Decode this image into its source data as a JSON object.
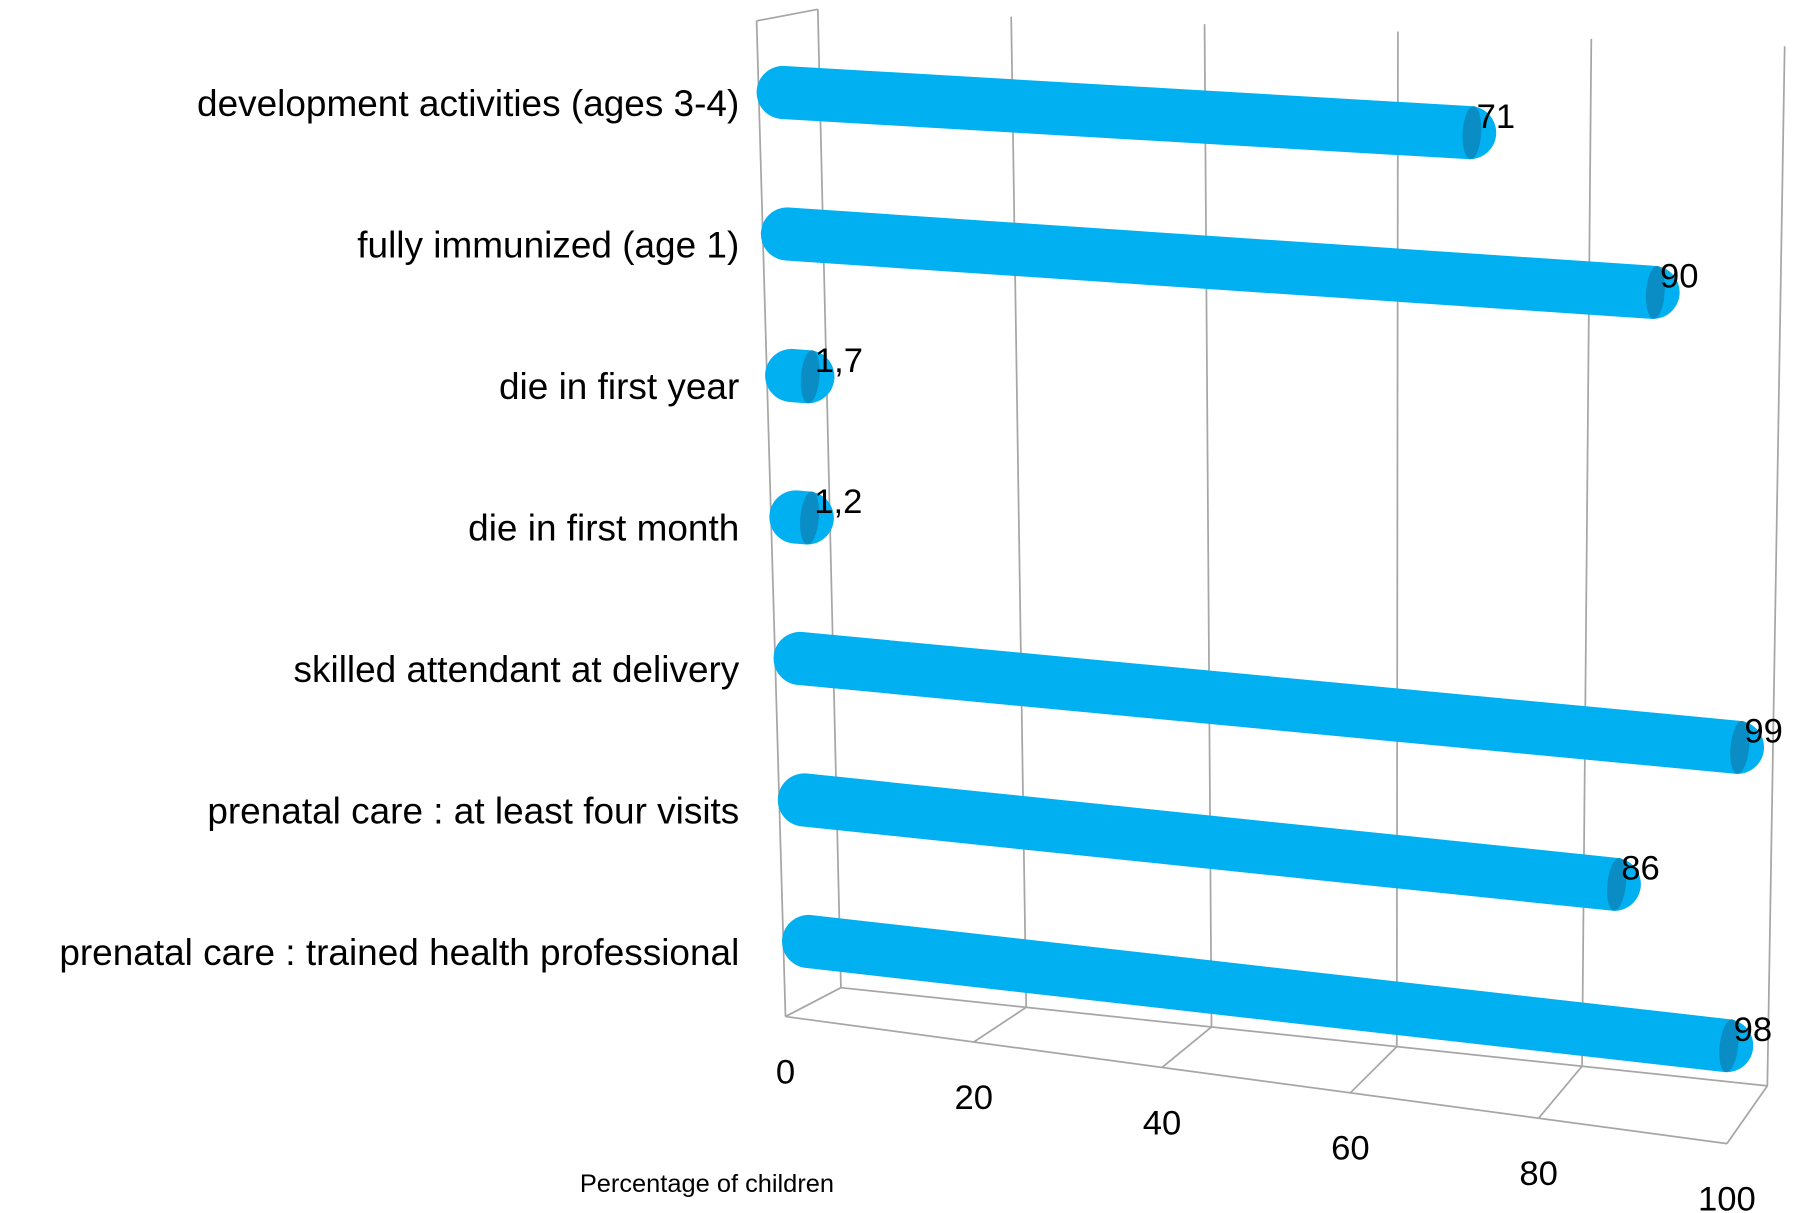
{
  "chart_data": {
    "type": "bar",
    "orientation": "horizontal",
    "x_label": "Percentage of children",
    "categories": [
      "development activities (ages 3-4)",
      "fully immunized (age 1)",
      "die in first year",
      "die in first month",
      "skilled attendant at delivery",
      "prenatal care : at least four visits",
      "prenatal care : trained health professional"
    ],
    "values": [
      71,
      90,
      1.7,
      1.2,
      99,
      86,
      98
    ],
    "value_labels": [
      "71",
      "90",
      "1,7",
      "1,2",
      "99",
      "86",
      "98"
    ],
    "color": "#00b0f0",
    "xlim": [
      0,
      100
    ],
    "xticks": [
      0,
      20,
      40,
      60,
      80,
      100
    ],
    "grid": true
  }
}
